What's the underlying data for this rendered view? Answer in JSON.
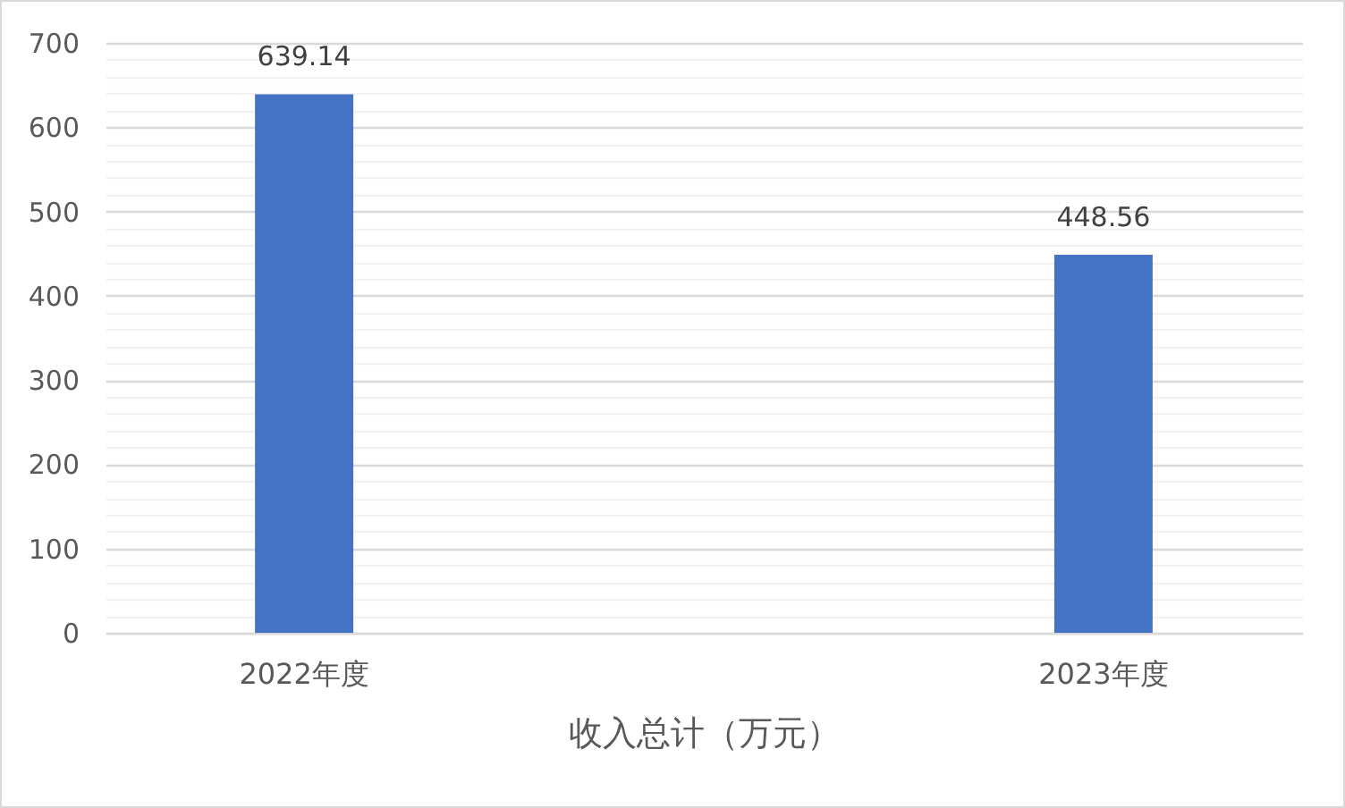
{
  "chart_data": {
    "type": "bar",
    "xlabel": "收入总计（万元）",
    "categories": [
      "2022年度",
      "2023年度"
    ],
    "values": [
      639.14,
      448.56
    ],
    "color": "#4472c4",
    "ylim": [
      0,
      700
    ],
    "yticks": [
      0,
      {
        "value": 20,
        "label": null
      },
      {
        "value": 40,
        "label": null
      },
      {
        "value": 60,
        "label": null
      },
      {
        "value": 80,
        "label": null
      },
      100,
      {
        "value": 120,
        "label": null
      },
      {
        "value": 140,
        "label": null
      },
      {
        "value": 160,
        "label": null
      },
      {
        "value": 180,
        "label": null
      },
      200,
      {
        "value": 220,
        "label": null
      },
      {
        "value": 240,
        "label": null
      },
      {
        "value": 260,
        "label": null
      },
      {
        "value": 280,
        "label": null
      },
      300,
      {
        "value": 320,
        "label": null
      },
      {
        "value": 340,
        "label": null
      },
      {
        "value": 360,
        "label": null
      },
      {
        "value": 380,
        "label": null
      },
      400,
      {
        "value": 420,
        "label": null
      },
      {
        "value": 440,
        "label": null
      },
      {
        "value": 460,
        "label": null
      },
      {
        "value": 480,
        "label": null
      },
      500,
      {
        "value": 520,
        "label": null
      },
      {
        "value": 540,
        "label": null
      },
      {
        "value": 560,
        "label": null
      },
      {
        "value": 580,
        "label": null
      },
      600,
      {
        "value": 620,
        "label": null
      },
      {
        "value": 640,
        "label": null
      },
      {
        "value": 660,
        "label": null
      },
      {
        "value": 680,
        "label": null
      },
      700
    ],
    "grid": true,
    "data_labels": true
  }
}
